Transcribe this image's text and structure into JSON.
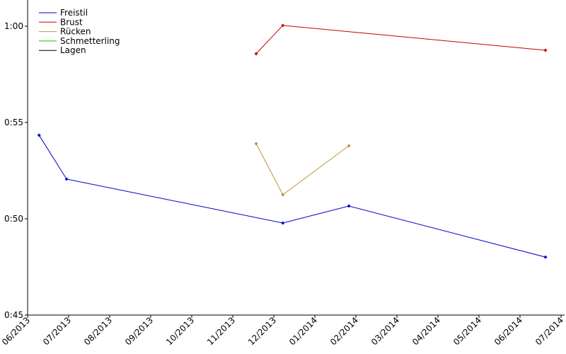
{
  "chart_data": {
    "type": "line",
    "series": [
      {
        "name": "Freistil",
        "color": "#0000cc",
        "x": [
          0.28,
          0.95,
          6.22,
          7.83,
          12.62
        ],
        "values": [
          54.34,
          52.06,
          49.78,
          50.66,
          48.01
        ]
      },
      {
        "name": "Brust",
        "color": "#cc0000",
        "x": [
          5.57,
          6.22,
          12.62
        ],
        "values": [
          58.57,
          60.04,
          58.75
        ]
      },
      {
        "name": "Rücken",
        "color": "#b8963c",
        "x": [
          5.57,
          6.22,
          7.83
        ],
        "values": [
          53.9,
          51.25,
          53.79
        ]
      },
      {
        "name": "Schmetterling",
        "color": "#00cc00",
        "x": [],
        "values": []
      },
      {
        "name": "Lagen",
        "color": "#000000",
        "x": [],
        "values": []
      }
    ],
    "xlim": [
      0,
      13.086
    ],
    "ylim": [
      45,
      61.36
    ],
    "xticks": [
      {
        "value": 0,
        "label": "06/2013"
      },
      {
        "value": 1,
        "label": "07/2013"
      },
      {
        "value": 2,
        "label": "08/2013"
      },
      {
        "value": 3,
        "label": "09/2013"
      },
      {
        "value": 4,
        "label": "10/2013"
      },
      {
        "value": 5,
        "label": "11/2013"
      },
      {
        "value": 6,
        "label": "12/2013"
      },
      {
        "value": 7,
        "label": "01/2014"
      },
      {
        "value": 8,
        "label": "02/2014"
      },
      {
        "value": 9,
        "label": "03/2014"
      },
      {
        "value": 10,
        "label": "04/2014"
      },
      {
        "value": 11,
        "label": "05/2014"
      },
      {
        "value": 12,
        "label": "06/2014"
      },
      {
        "value": 13,
        "label": "07/2014"
      }
    ],
    "yticks": [
      {
        "value": 45,
        "label": "0:45"
      },
      {
        "value": 50,
        "label": "0:50"
      },
      {
        "value": 55,
        "label": "0:55"
      },
      {
        "value": 60,
        "label": "1:00"
      }
    ],
    "legend": "upper left"
  }
}
